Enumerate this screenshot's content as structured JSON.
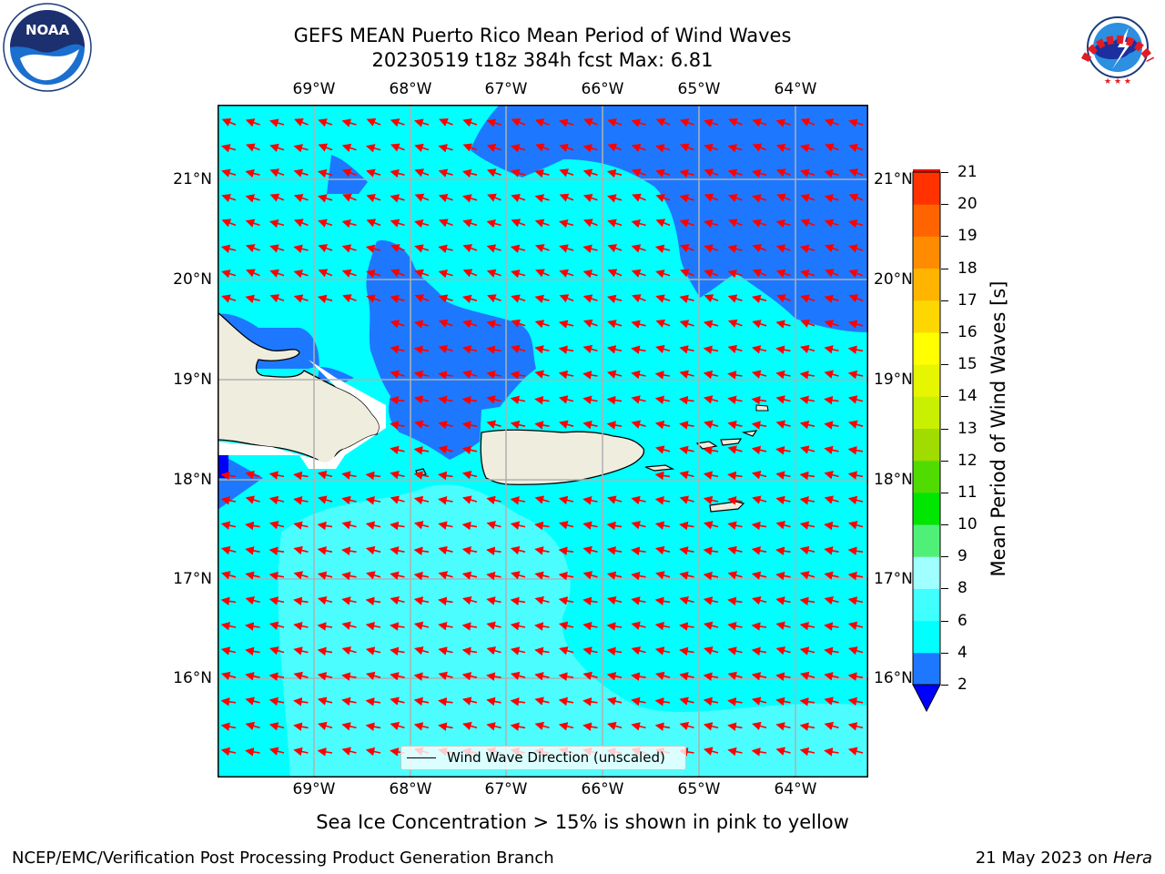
{
  "title": {
    "line1": "GEFS MEAN Puerto Rico Mean Period of Wind Waves",
    "line2": "20230519 t18z 384h fcst   Max: 6.81"
  },
  "logos": {
    "noaa_text": "NOAA",
    "nws_text": "NATIONAL WEATHER SERVICE"
  },
  "axes": {
    "lon_labels": [
      "69°W",
      "68°W",
      "67°W",
      "66°W",
      "65°W",
      "64°W"
    ],
    "lat_labels": [
      "21°N",
      "20°N",
      "19°N",
      "18°N",
      "17°N",
      "16°N"
    ]
  },
  "colorbar": {
    "label": "Mean Period of Wind Waves [s]",
    "ticks": [
      "2",
      "4",
      "6",
      "8",
      "9",
      "10",
      "11",
      "12",
      "13",
      "14",
      "15",
      "16",
      "17",
      "18",
      "19",
      "20",
      "21"
    ],
    "colors": [
      "#1e78ff",
      "#00ffff",
      "#40ffff",
      "#a0ffff",
      "#50f078",
      "#00e600",
      "#50dc00",
      "#a0dc00",
      "#c8f000",
      "#e6f500",
      "#ffff00",
      "#ffd700",
      "#ffb400",
      "#ff8c00",
      "#ff6400",
      "#ff3200",
      "#ff0000"
    ],
    "under_color": "#0000ff"
  },
  "legend": {
    "label": "Wind Wave Direction (unscaled)"
  },
  "ice_note": "Sea Ice Concentration > 15% is shown in pink to yellow",
  "footer": {
    "left": "NCEP/EMC/Verification Post Processing Product Generation Branch",
    "right_date": "21 May 2023 on ",
    "right_host": "Hera"
  },
  "map_colors": {
    "dark": "#1e78ff",
    "mid": "#00ffff",
    "light": "#4cfdff",
    "land": "#efedde",
    "arrow": "#ff0000",
    "grid": "#b0b0b0"
  }
}
